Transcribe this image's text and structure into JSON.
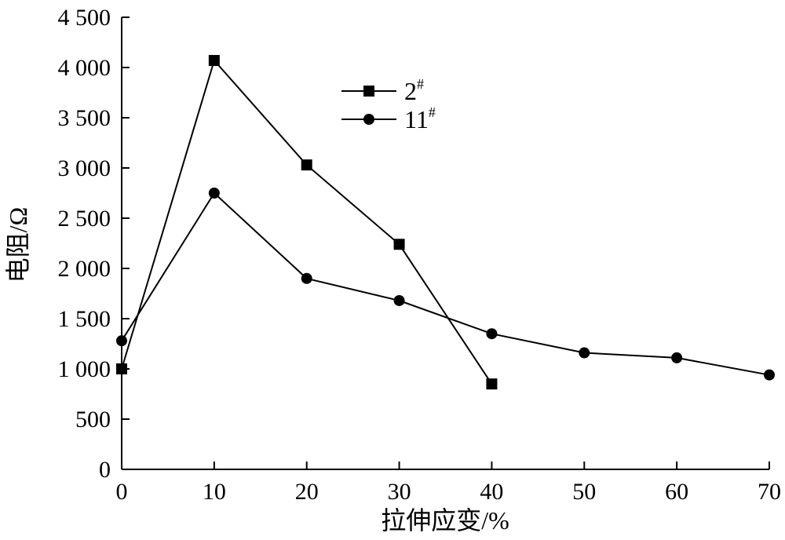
{
  "chart_data": {
    "type": "line",
    "xlabel": "拉伸应变/%",
    "ylabel": "电阻/Ω",
    "xlim": [
      0,
      70
    ],
    "ylim": [
      0,
      4500
    ],
    "x_ticks": [
      0,
      10,
      20,
      30,
      40,
      50,
      60,
      70
    ],
    "y_ticks": [
      0,
      500,
      1000,
      1500,
      2000,
      2500,
      3000,
      3500,
      4000,
      4500
    ],
    "x_tick_labels": [
      "0",
      "10",
      "20",
      "30",
      "40",
      "50",
      "60",
      "70"
    ],
    "y_tick_labels": [
      "0",
      "500",
      "1 000",
      "1 500",
      "2 000",
      "2 500",
      "3 000",
      "3 500",
      "4 000",
      "4 500"
    ],
    "grid": false,
    "legend_position": "top-center",
    "series": [
      {
        "name": "2",
        "name_sup": "#",
        "marker": "square",
        "color": "#000000",
        "x": [
          0,
          10,
          20,
          30,
          40
        ],
        "y": [
          1000,
          4070,
          3030,
          2240,
          850
        ]
      },
      {
        "name": "11",
        "name_sup": "#",
        "marker": "circle",
        "color": "#000000",
        "x": [
          0,
          10,
          20,
          30,
          40,
          50,
          60,
          70
        ],
        "y": [
          1280,
          2750,
          1900,
          1680,
          1350,
          1160,
          1110,
          940
        ]
      }
    ]
  }
}
